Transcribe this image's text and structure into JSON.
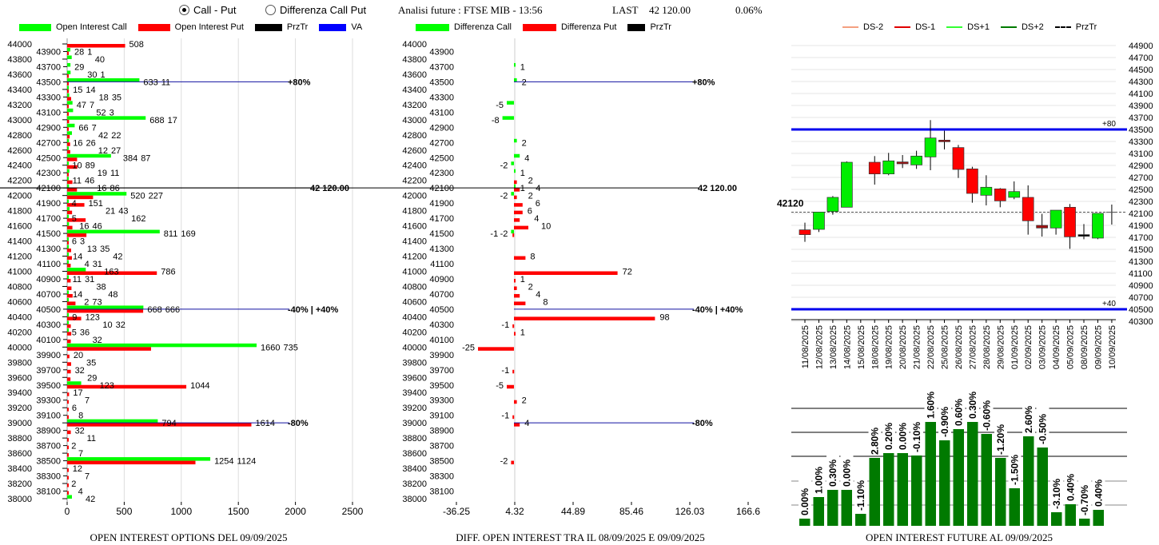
{
  "header": {
    "mode_options": [
      {
        "label": "Call - Put",
        "selected": true
      },
      {
        "label": "Differenza Call Put",
        "selected": false
      }
    ],
    "analysis_label": "Analisi future : FTSE MIB - 13:56",
    "last_label": "LAST",
    "last_value": "42 120.00",
    "change": "0.06%"
  },
  "colors": {
    "call": "#00ff00",
    "put": "#ff0000",
    "przTr": "#000000",
    "va": "#0000ff",
    "bar": "#007a00"
  },
  "chart_data": [
    {
      "type": "bar",
      "orientation": "horizontal",
      "title": "OPEN INTEREST OPTIONS DEL 09/09/2025",
      "legend": [
        "Open Interest Call",
        "Open Interest Put",
        "PrzTr",
        "VA"
      ],
      "xlim": [
        0,
        2500
      ],
      "xticks": [
        "0",
        "500",
        "1000",
        "1500",
        "2000",
        "2500"
      ],
      "ylim": [
        38000,
        44000
      ],
      "przTr": {
        "strike": 42100,
        "label": "42 120.00"
      },
      "va_lines": [
        {
          "strike": 43500,
          "label": "+80%"
        },
        {
          "strike": 40500,
          "label": "-40% | +40%"
        },
        {
          "strike": 39000,
          "label": "-80%"
        }
      ],
      "rows": [
        [
          44000,
          0,
          508
        ],
        [
          43900,
          28,
          1
        ],
        [
          43800,
          40,
          0
        ],
        [
          43700,
          29,
          0
        ],
        [
          43600,
          30,
          1
        ],
        [
          43500,
          633,
          11
        ],
        [
          43400,
          15,
          14
        ],
        [
          43300,
          18,
          35
        ],
        [
          43200,
          47,
          7
        ],
        [
          43100,
          52,
          3
        ],
        [
          43000,
          688,
          17
        ],
        [
          42900,
          66,
          7
        ],
        [
          42800,
          42,
          22
        ],
        [
          42700,
          16,
          26
        ],
        [
          42600,
          12,
          27
        ],
        [
          42500,
          384,
          87
        ],
        [
          42400,
          10,
          89
        ],
        [
          42300,
          19,
          11
        ],
        [
          42200,
          11,
          46
        ],
        [
          42100,
          16,
          86
        ],
        [
          42000,
          520,
          227
        ],
        [
          41900,
          4,
          151
        ],
        [
          41800,
          21,
          43
        ],
        [
          41700,
          5,
          162
        ],
        [
          41600,
          16,
          46
        ],
        [
          41500,
          811,
          169
        ],
        [
          41400,
          6,
          3
        ],
        [
          41300,
          13,
          35
        ],
        [
          41200,
          14,
          42
        ],
        [
          41100,
          4,
          31
        ],
        [
          41000,
          163,
          786
        ],
        [
          40900,
          11,
          31
        ],
        [
          40800,
          0,
          38
        ],
        [
          40700,
          14,
          48
        ],
        [
          40600,
          2,
          73
        ],
        [
          40500,
          668,
          666
        ],
        [
          40400,
          9,
          123
        ],
        [
          40300,
          10,
          32
        ],
        [
          40200,
          5,
          36
        ],
        [
          40100,
          0,
          32
        ],
        [
          40000,
          1660,
          735
        ],
        [
          39900,
          0,
          20
        ],
        [
          39800,
          0,
          35
        ],
        [
          39700,
          0,
          32
        ],
        [
          39600,
          0,
          29
        ],
        [
          39500,
          123,
          1044
        ],
        [
          39400,
          0,
          17
        ],
        [
          39300,
          0,
          7
        ],
        [
          39200,
          0,
          6
        ],
        [
          39100,
          0,
          8
        ],
        [
          39000,
          794,
          1614
        ],
        [
          38900,
          0,
          32
        ],
        [
          38800,
          0,
          11
        ],
        [
          38700,
          0,
          2
        ],
        [
          38600,
          0,
          7
        ],
        [
          38500,
          1254,
          1124
        ],
        [
          38400,
          0,
          12
        ],
        [
          38300,
          0,
          7
        ],
        [
          38200,
          0,
          2
        ],
        [
          38100,
          0,
          4
        ],
        [
          38000,
          42,
          0
        ]
      ]
    },
    {
      "type": "bar",
      "orientation": "horizontal",
      "title": "DIFF. OPEN INTEREST TRA IL 08/09/2025 E 09/09/2025",
      "legend": [
        "Differenza Call",
        "Differenza Put",
        "PrzTr"
      ],
      "xlim": [
        -36.25,
        166.6
      ],
      "xticks": [
        "-36.25",
        "4.32",
        "44.89",
        "85.46",
        "126.03",
        "166.6"
      ],
      "ylim": [
        38000,
        44000
      ],
      "przTr": {
        "strike": 42100,
        "label": "42 120.00"
      },
      "va_lines": [
        {
          "strike": 43500,
          "label": "+80%"
        },
        {
          "strike": 40500,
          "label": "-40% | +40%"
        },
        {
          "strike": 39000,
          "label": "-80%"
        }
      ],
      "calls": [
        [
          43700,
          1
        ],
        [
          43500,
          2
        ],
        [
          43200,
          -5
        ],
        [
          43000,
          -8
        ],
        [
          42700,
          2
        ],
        [
          42500,
          4
        ],
        [
          42400,
          -2
        ],
        [
          42300,
          1
        ],
        [
          42100,
          1
        ],
        [
          42000,
          -2
        ],
        [
          41500,
          -2
        ]
      ],
      "puts": [
        [
          42200,
          2
        ],
        [
          42100,
          4
        ],
        [
          42000,
          2
        ],
        [
          41900,
          6
        ],
        [
          41800,
          6
        ],
        [
          41700,
          4
        ],
        [
          41600,
          10
        ],
        [
          41500,
          -1
        ],
        [
          41200,
          8
        ],
        [
          41000,
          72
        ],
        [
          40900,
          1
        ],
        [
          40800,
          2
        ],
        [
          40700,
          4
        ],
        [
          40600,
          8
        ],
        [
          40400,
          98
        ],
        [
          40300,
          -1
        ],
        [
          40200,
          1
        ],
        [
          40000,
          -25
        ],
        [
          39700,
          -1
        ],
        [
          39500,
          -5
        ],
        [
          39300,
          2
        ],
        [
          39100,
          -1
        ],
        [
          39000,
          4
        ],
        [
          38500,
          -2
        ]
      ]
    },
    {
      "type": "candlestick",
      "legend": [
        "DS-2",
        "DS-1",
        "DS+1",
        "DS+2",
        "PrzTr"
      ],
      "ylim": [
        40300,
        44900
      ],
      "przTr": {
        "value": 42120,
        "label": "42120"
      },
      "levels": [
        {
          "value": 43500,
          "label": "+80"
        },
        {
          "value": 40500,
          "label": "+40"
        }
      ],
      "dates": [
        "11/08/2025",
        "12/08/2025",
        "13/08/2025",
        "14/08/2025",
        "15/08/2025",
        "18/08/2025",
        "19/08/2025",
        "20/08/2025",
        "21/08/2025",
        "22/08/2025",
        "25/08/2025",
        "26/08/2025",
        "27/08/2025",
        "28/08/2025",
        "29/08/2025",
        "01/09/2025",
        "02/09/2025",
        "03/09/2025",
        "04/09/2025",
        "05/09/2025",
        "08/09/2025",
        "09/09/2025",
        "10/09/2025"
      ],
      "ohlc": [
        [
          41825,
          41945,
          41625,
          41745
        ],
        [
          41833,
          42122,
          41789,
          42122
        ],
        [
          42131,
          42389,
          42078,
          42367
        ],
        [
          42202,
          42967,
          42202,
          42953
        ],
        null,
        [
          42953,
          43056,
          42580,
          42758
        ],
        [
          42758,
          43109,
          42736,
          42976
        ],
        [
          42927,
          43073,
          42856,
          42958
        ],
        [
          42909,
          43145,
          42842,
          43056
        ],
        [
          43042,
          43656,
          42820,
          43358
        ],
        [
          43322,
          43478,
          43167,
          43296
        ],
        [
          43198,
          43242,
          42691,
          42833
        ],
        [
          42842,
          42878,
          42278,
          42433
        ],
        [
          42402,
          42736,
          42233,
          42536
        ],
        [
          42509,
          42522,
          42202,
          42309
        ],
        [
          42367,
          42633,
          42336,
          42464
        ],
        [
          42367,
          42567,
          41745,
          41976
        ],
        [
          41900,
          42091,
          41713,
          41856
        ],
        [
          41856,
          42153,
          41745,
          42153
        ],
        [
          42202,
          42256,
          41509,
          41709
        ],
        [
          41745,
          41922,
          41669,
          41745
        ],
        [
          41687,
          42100,
          41669,
          42100
        ],
        [
          42120,
          42247,
          41913,
          42120
        ]
      ]
    },
    {
      "type": "bar",
      "title": "OPEN INTEREST FUTURE AL 09/09/2025",
      "values_relative": [
        9,
        36,
        45,
        45,
        15,
        85,
        91,
        91,
        88,
        130,
        107,
        121,
        130,
        115,
        85,
        47,
        112,
        98,
        17,
        27,
        9,
        20
      ],
      "labels": [
        "0.00%",
        "1.00%",
        "0.30%",
        "0.00%",
        "-1.10%",
        "2.80%",
        "0.20%",
        "0.00%",
        "-0.10%",
        "1.60%",
        "-0.90%",
        "0.60%",
        "0.30%",
        "-0.60%",
        "-1.20%",
        "-1.50%",
        "2.60%",
        "-0.50%",
        "-3.10%",
        "0.40%",
        "-0.70%",
        "0.40%"
      ]
    }
  ]
}
